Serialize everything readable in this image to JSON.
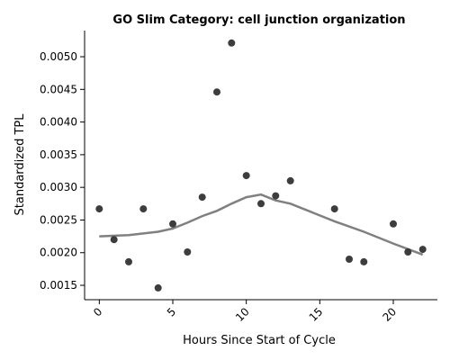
{
  "chart_data": {
    "type": "scatter",
    "title": "GO Slim Category: cell junction organization",
    "xlabel": "Hours Since Start of Cycle",
    "ylabel": "Standardized TPL",
    "xlim": [
      -1,
      23
    ],
    "ylim": [
      0.00128,
      0.0054
    ],
    "xticks": [
      0,
      5,
      10,
      15,
      20
    ],
    "xtick_labels": [
      "0",
      "5",
      "10",
      "15",
      "20"
    ],
    "yticks": [
      0.0015,
      0.002,
      0.0025,
      0.003,
      0.0035,
      0.004,
      0.0045,
      0.005
    ],
    "ytick_labels": [
      "0.0015",
      "0.0020",
      "0.0025",
      "0.0030",
      "0.0035",
      "0.0040",
      "0.0045",
      "0.0050"
    ],
    "grid": false,
    "point_color": "#333333",
    "line_color": "#808080",
    "points": {
      "x": [
        0,
        1,
        2,
        3,
        4,
        5,
        6,
        7,
        8,
        9,
        10,
        11,
        12,
        13,
        16,
        17,
        18,
        20,
        21,
        22
      ],
      "y": [
        0.00267,
        0.0022,
        0.00186,
        0.00267,
        0.00146,
        0.00244,
        0.00201,
        0.00285,
        0.00446,
        0.00521,
        0.00318,
        0.00275,
        0.00287,
        0.0031,
        0.00267,
        0.0019,
        0.00186,
        0.00244,
        0.00201,
        0.00205
      ]
    },
    "smooth_line": {
      "x": [
        0,
        2,
        4,
        5,
        6,
        7,
        8,
        9,
        10,
        11,
        12,
        13,
        14,
        15,
        16,
        18,
        20,
        22
      ],
      "y": [
        0.00225,
        0.00227,
        0.00232,
        0.00237,
        0.00246,
        0.00256,
        0.00264,
        0.00275,
        0.00285,
        0.00289,
        0.0028,
        0.00275,
        0.00266,
        0.00257,
        0.00248,
        0.00232,
        0.00214,
        0.00197
      ]
    }
  }
}
